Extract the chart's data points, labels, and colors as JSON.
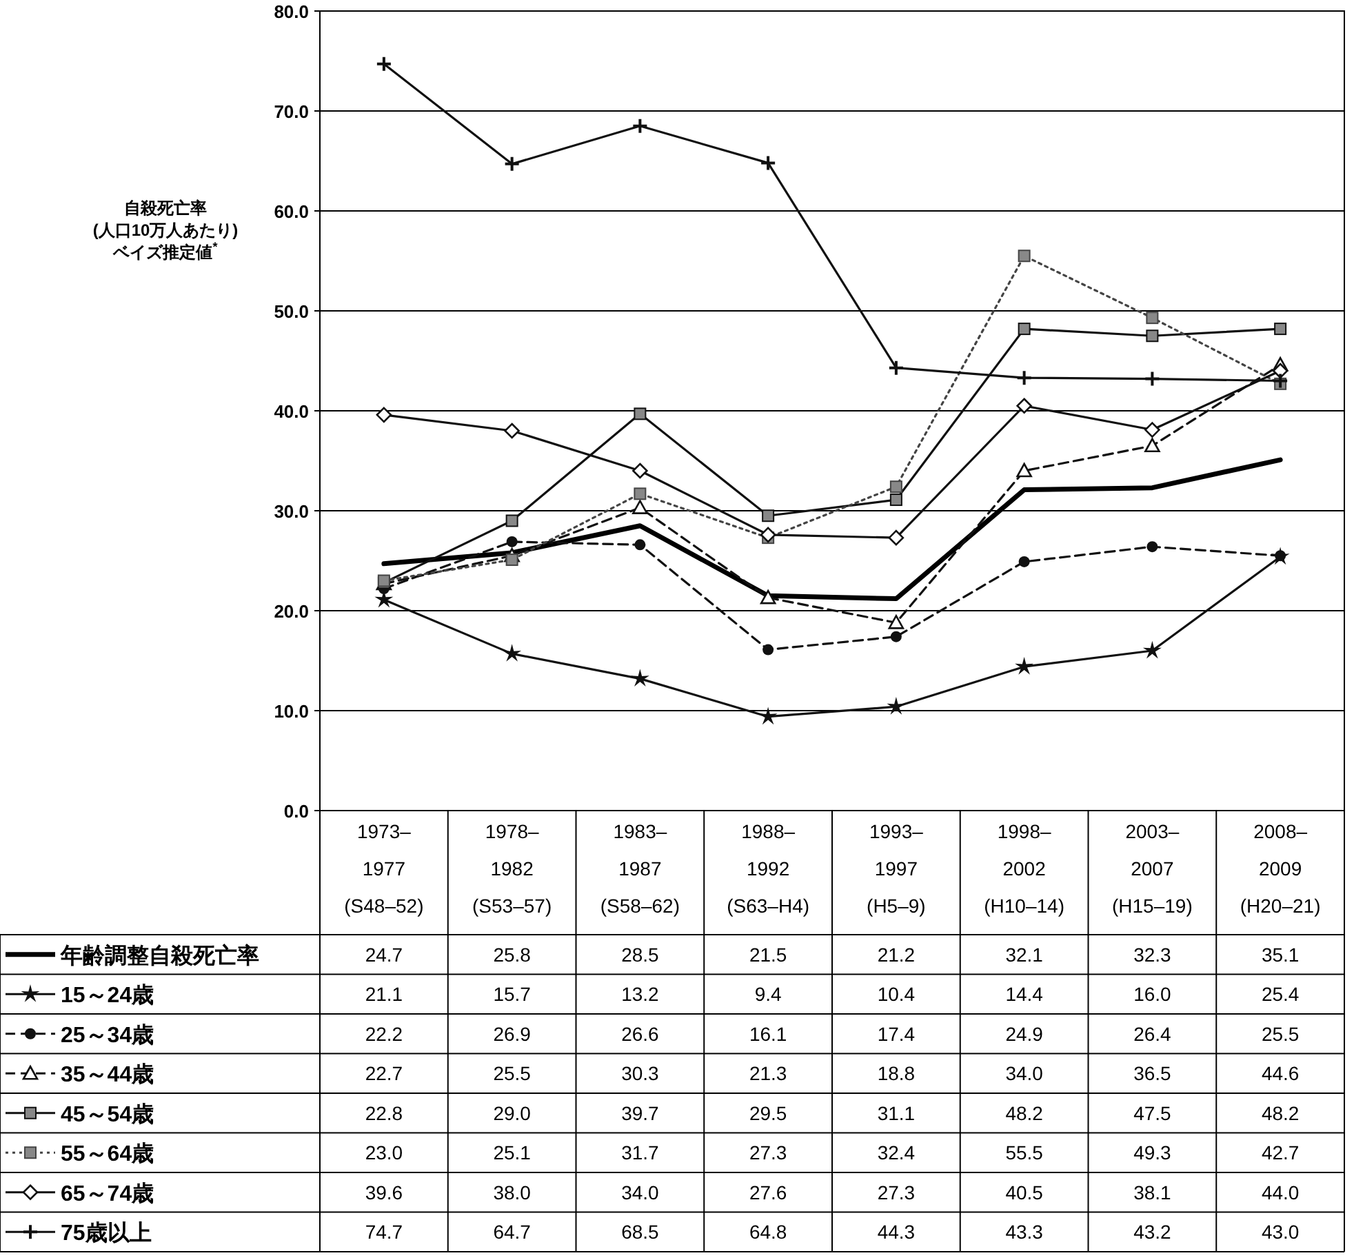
{
  "chart_data": {
    "type": "line",
    "ylabel": "自殺死亡率\n(人口10万人あたり)\nベイズ推定値$^{*}$",
    "categories": [
      "1973–\n1977\n(S48–52)",
      "1978–\n1982\n(S53–57)",
      "1983–\n1987\n(S58–62)",
      "1988–\n1992\n(S63–H4)",
      "1993–\n1997\n(H5–9)",
      "1998–\n2002\n(H10–14)",
      "2003–\n2007\n(H15–19)",
      "2008–\n2009\n(H20–21)"
    ],
    "ylim": [
      0,
      80
    ],
    "yticks": [
      {
        "value": 0,
        "label": "0.0"
      },
      {
        "value": 10,
        "label": "10.0"
      },
      {
        "value": 20,
        "label": "20.0"
      },
      {
        "value": 30,
        "label": "30.0"
      },
      {
        "value": 40,
        "label": "40.0"
      },
      {
        "value": 50,
        "label": "50.0"
      },
      {
        "value": 60,
        "label": "60.0"
      },
      {
        "value": 70,
        "label": "70.0"
      },
      {
        "value": 80,
        "label": "80.0"
      }
    ],
    "grid": "y",
    "legend": "bottom",
    "series": [
      {
        "name": "年齢調整自殺死亡率",
        "color": "#000000",
        "marker": "none",
        "line_style": "solid",
        "values": [
          24.7,
          25.8,
          28.5,
          21.5,
          21.2,
          32.1,
          32.3,
          35.1
        ],
        "value_labels": [
          "24.7",
          "25.8",
          "28.5",
          "21.5",
          "21.2",
          "32.1",
          "32.3",
          "35.1"
        ]
      },
      {
        "name": "15～24歳",
        "color": "#111111",
        "marker": "star",
        "line_style": "solid",
        "values": [
          21.1,
          15.7,
          13.2,
          9.4,
          10.4,
          14.4,
          16.0,
          25.4
        ],
        "value_labels": [
          "21.1",
          "15.7",
          "13.2",
          "9.4",
          "10.4",
          "14.4",
          "16.0",
          "25.4"
        ]
      },
      {
        "name": "25～34歳",
        "color": "#111111",
        "marker": "circle",
        "line_style": "dashed",
        "values": [
          22.2,
          26.9,
          26.6,
          16.1,
          17.4,
          24.9,
          26.4,
          25.5
        ],
        "value_labels": [
          "22.2",
          "26.9",
          "26.6",
          "16.1",
          "17.4",
          "24.9",
          "26.4",
          "25.5"
        ]
      },
      {
        "name": "35～44歳",
        "color": "#111111",
        "marker": "triangle",
        "line_style": "dashed",
        "values": [
          22.7,
          25.5,
          30.3,
          21.3,
          18.8,
          34.0,
          36.5,
          44.6
        ],
        "value_labels": [
          "22.7",
          "25.5",
          "30.3",
          "21.3",
          "18.8",
          "34.0",
          "36.5",
          "44.6"
        ]
      },
      {
        "name": "45～54歳",
        "color": "#111111",
        "marker": "square",
        "line_style": "solid",
        "values": [
          22.8,
          29.0,
          39.7,
          29.5,
          31.1,
          48.2,
          47.5,
          48.2
        ],
        "value_labels": [
          "22.8",
          "29.0",
          "39.7",
          "29.5",
          "31.1",
          "48.2",
          "47.5",
          "48.2"
        ]
      },
      {
        "name": "55～64歳",
        "color": "#444444",
        "marker": "square",
        "line_style": "dotted",
        "values": [
          23.0,
          25.1,
          31.7,
          27.3,
          32.4,
          55.5,
          49.3,
          42.7
        ],
        "value_labels": [
          "23.0",
          "25.1",
          "31.7",
          "27.3",
          "32.4",
          "55.5",
          "49.3",
          "42.7"
        ]
      },
      {
        "name": "65～74歳",
        "color": "#111111",
        "marker": "diamond",
        "line_style": "solid",
        "values": [
          39.6,
          38.0,
          34.0,
          27.6,
          27.3,
          40.5,
          38.1,
          44.0
        ],
        "value_labels": [
          "39.6",
          "38.0",
          "34.0",
          "27.6",
          "27.3",
          "40.5",
          "38.1",
          "44.0"
        ]
      },
      {
        "name": "75歳以上",
        "color": "#111111",
        "marker": "cross",
        "line_style": "solid",
        "values": [
          74.7,
          64.7,
          68.5,
          64.8,
          44.3,
          43.3,
          43.2,
          43.0
        ],
        "value_labels": [
          "74.7",
          "64.7",
          "68.5",
          "64.8",
          "44.3",
          "43.3",
          "43.2",
          "43.0"
        ]
      }
    ]
  }
}
